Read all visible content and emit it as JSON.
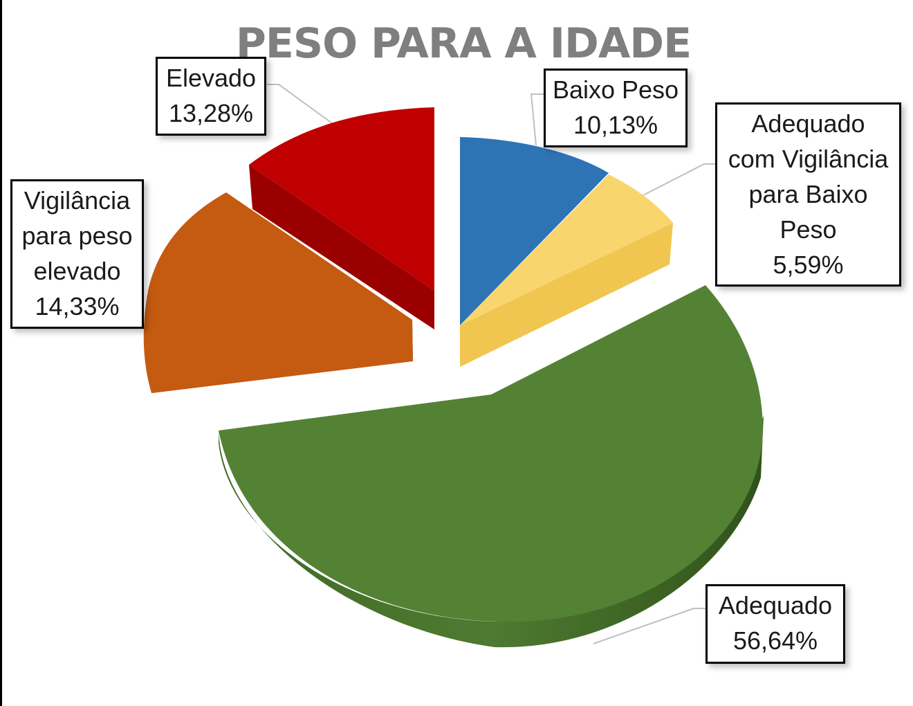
{
  "chart_data": {
    "type": "pie",
    "title": "PESO PARA A IDADE",
    "three_d": true,
    "exploded": true,
    "slices": [
      {
        "label": "Baixo Peso",
        "value": 10.13,
        "value_text": "10,13%",
        "color": "#2e74b5"
      },
      {
        "label": "Adequado com Vigilância para Baixo Peso",
        "value": 5.59,
        "value_text": "5,59%",
        "color": "#f9d56e"
      },
      {
        "label": "Adequado",
        "value": 56.64,
        "value_text": "56,64%",
        "color": "#548235"
      },
      {
        "label": "Vigilância para peso elevado",
        "value": 14.33,
        "value_text": "14,33%",
        "color": "#c55a11"
      },
      {
        "label": "Elevado",
        "value": 13.28,
        "value_text": "13,28%",
        "color": "#c00000"
      }
    ],
    "label_lines": {
      "baixo_peso": [
        "Baixo Peso"
      ],
      "adequado_vig_baixo": [
        "Adequado",
        "com Vigilância",
        "para Baixo",
        "Peso"
      ],
      "adequado": [
        "Adequado"
      ],
      "vig_elevado": [
        "Vigilância",
        "para peso",
        "elevado"
      ],
      "elevado": [
        "Elevado"
      ]
    }
  }
}
